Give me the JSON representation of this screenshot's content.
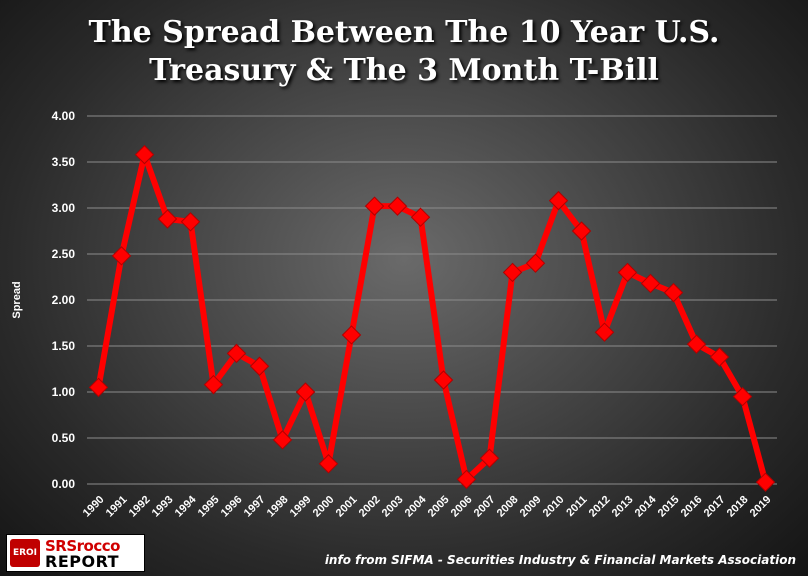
{
  "title_line1": "The Spread Between The 10 Year U.S.",
  "title_line2": "Treasury & The 3 Month T-Bill",
  "source_note": "info from SIFMA - Securities Industry & Financial Markets Association",
  "logo": {
    "badge": "EROI",
    "line1": "SRSrocco",
    "line2": "REPORT"
  },
  "colors": {
    "series": "#ff0000",
    "text": "#ffffff",
    "grid": "#8c8c8c"
  },
  "chart_data": {
    "type": "line",
    "title": "The Spread Between The 10 Year U.S. Treasury & The 3 Month T-Bill",
    "xlabel": "",
    "ylabel": "Spread",
    "ylim": [
      0,
      4
    ],
    "yticks": [
      "0.00",
      "0.50",
      "1.00",
      "1.50",
      "2.00",
      "2.50",
      "3.00",
      "3.50",
      "4.00"
    ],
    "grid": true,
    "categories": [
      "1990",
      "1991",
      "1992",
      "1993",
      "1994",
      "1995",
      "1996",
      "1997",
      "1998",
      "1999",
      "2000",
      "2001",
      "2002",
      "2003",
      "2004",
      "2005",
      "2006",
      "2007",
      "2008",
      "2009",
      "2010",
      "2011",
      "2012",
      "2013",
      "2014",
      "2015",
      "2016",
      "2017",
      "2018",
      "2019"
    ],
    "series": [
      {
        "values": [
          1.05,
          2.48,
          3.58,
          2.88,
          2.85,
          1.08,
          1.42,
          1.28,
          0.48,
          1.0,
          0.22,
          1.62,
          3.02,
          3.02,
          2.9,
          1.13,
          0.05,
          0.28,
          2.3,
          2.4,
          3.08,
          2.75,
          1.65,
          2.3,
          2.18,
          2.08,
          1.52,
          1.38,
          0.95,
          0.02
        ]
      }
    ]
  }
}
